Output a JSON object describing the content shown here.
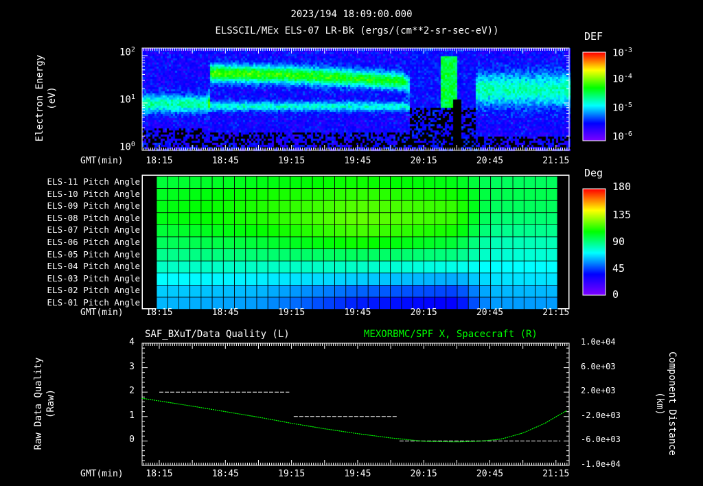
{
  "header": {
    "timestamp": "2023/194 18:09:00.000",
    "subtitle": "ELSSCIL/MEx ELS-07 LR-Bk  (ergs/(cm**2-sr-sec-eV))"
  },
  "time_axis": {
    "label": "GMT(min)",
    "ticks": [
      "18:15",
      "18:45",
      "19:15",
      "19:45",
      "20:15",
      "20:45",
      "21:15"
    ],
    "tick_minutes": [
      15,
      45,
      75,
      105,
      135,
      165,
      195
    ]
  },
  "chart_data": [
    {
      "type": "heatmap",
      "title": "ELSSCIL/MEx ELS-07 LR-Bk  (ergs/(cm**2-sr-sec-eV))",
      "ylabel": "Electron Energy",
      "yunits": "(eV)",
      "yscale": "log",
      "ylim": [
        1,
        145
      ],
      "yticks": [
        {
          "sup": "0",
          "base": "10"
        },
        {
          "sup": "1",
          "base": "10"
        },
        {
          "sup": "2",
          "base": "10"
        }
      ],
      "colorbar": {
        "label": "DEF",
        "ticks": [
          {
            "base": "10",
            "sup": "-3"
          },
          {
            "base": "10",
            "sup": "-4"
          },
          {
            "base": "10",
            "sup": "-5"
          },
          {
            "base": "10",
            "sup": "-6"
          }
        ],
        "range": [
          1e-06,
          0.001
        ]
      },
      "features": {
        "time_minutes": [
          10,
          37,
          38,
          70,
          100,
          125,
          130,
          140,
          148,
          158,
          200
        ],
        "main_band_peak_log10_eV": [
          1.0,
          1.0,
          1.65,
          1.62,
          1.55,
          1.48,
          1.3,
          1.4,
          1.9,
          1.3,
          1.3
        ],
        "main_band_level": [
          0.45,
          0.45,
          0.62,
          0.6,
          0.58,
          0.55,
          0.3,
          0.45,
          0.55,
          0.45,
          0.45
        ]
      }
    },
    {
      "type": "heatmap",
      "ylabel": "",
      "rows": [
        "ELS-11 Pitch Angle",
        "ELS-10 Pitch Angle",
        "ELS-09 Pitch Angle",
        "ELS-08 Pitch Angle",
        "ELS-07 Pitch Angle",
        "ELS-06 Pitch Angle",
        "ELS-05 Pitch Angle",
        "ELS-04 Pitch Angle",
        "ELS-03 Pitch Angle",
        "ELS-02 Pitch Angle",
        "ELS-01 Pitch Angle"
      ],
      "time_minutes": [
        15,
        60,
        105,
        150,
        165,
        195
      ],
      "values_deg": [
        [
          100,
          105,
          110,
          105,
          95,
          95
        ],
        [
          103,
          110,
          115,
          110,
          97,
          97
        ],
        [
          105,
          112,
          120,
          115,
          95,
          95
        ],
        [
          105,
          112,
          122,
          115,
          92,
          92
        ],
        [
          100,
          108,
          118,
          110,
          88,
          88
        ],
        [
          95,
          100,
          110,
          100,
          82,
          82
        ],
        [
          88,
          92,
          95,
          90,
          78,
          78
        ],
        [
          80,
          80,
          80,
          75,
          72,
          72
        ],
        [
          72,
          70,
          65,
          60,
          68,
          68
        ],
        [
          65,
          62,
          50,
          45,
          62,
          62
        ],
        [
          62,
          58,
          40,
          35,
          58,
          58
        ]
      ],
      "colorbar": {
        "label": "Deg",
        "ticks": [
          "180",
          "135",
          "90",
          "45",
          "0"
        ],
        "range": [
          0,
          180
        ]
      }
    },
    {
      "type": "line",
      "title_left": "SAF_BXuT/Data Quality (L)",
      "title_right": "MEXORBMC/SPF X, Spacecraft (R)",
      "ylabel_left": "Raw Data Quality",
      "yunits_left": "(Raw)",
      "ylim_left": [
        -1,
        4
      ],
      "yticks_left": [
        "4",
        "3",
        "2",
        "1",
        "0"
      ],
      "ylabel_right": "Component Distance",
      "yunits_right": "(km)",
      "ylim_right": [
        -10000,
        10000
      ],
      "yticks_right": [
        "1.0e+04",
        "6.0e+03",
        "2.0e+03",
        "-2.0e+03",
        "-6.0e+03",
        "-1.0e+04"
      ],
      "series": [
        {
          "name": "Data Quality",
          "color": "#ffffff",
          "segments": [
            {
              "start_min": 15,
              "end_min": 74,
              "value": 2
            },
            {
              "start_min": 76,
              "end_min": 123,
              "value": 1
            },
            {
              "start_min": 124,
              "end_min": 197,
              "value": 0
            }
          ]
        },
        {
          "name": "SPF X",
          "color": "#00ff00",
          "x_min": [
            7,
            30,
            60,
            75,
            90,
            105,
            120,
            135,
            150,
            160,
            170,
            180,
            190,
            200
          ],
          "y_km": [
            1000,
            -300,
            -2100,
            -3100,
            -4000,
            -4800,
            -5500,
            -6050,
            -6150,
            -6050,
            -5700,
            -4700,
            -3100,
            -1000
          ]
        }
      ]
    }
  ]
}
